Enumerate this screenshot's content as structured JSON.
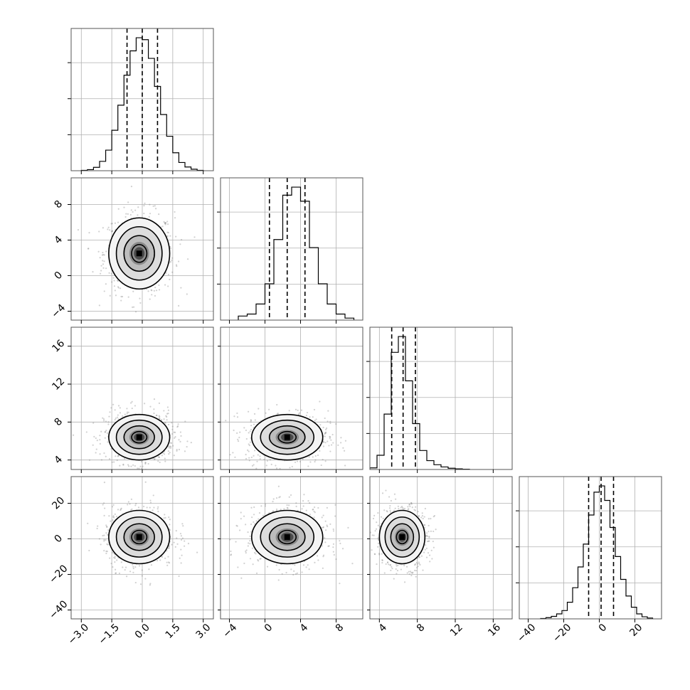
{
  "chart_data": {
    "type": "corner",
    "n_params": 4,
    "params": [
      {
        "range": [
          -3.5,
          3.5
        ],
        "ticks": [
          -3.0,
          -1.5,
          0.0,
          1.5,
          3.0
        ],
        "tick_labels": [
          "−3.0",
          "−1.5",
          "0.0",
          "1.5",
          "3.0"
        ],
        "quantiles": [
          -0.75,
          0.0,
          0.75
        ],
        "hist_edges": [
          -3.0,
          -2.7,
          -2.4,
          -2.1,
          -1.8,
          -1.5,
          -1.2,
          -0.9,
          -0.6,
          -0.3,
          0.0,
          0.3,
          0.6,
          0.9,
          1.2,
          1.5,
          1.8,
          2.1,
          2.4,
          2.7,
          3.0
        ],
        "hist_counts": [
          1,
          3,
          9,
          25,
          55,
          108,
          175,
          255,
          320,
          355,
          350,
          300,
          225,
          150,
          92,
          48,
          22,
          10,
          4,
          1
        ]
      },
      {
        "range": [
          -5,
          11
        ],
        "ticks": [
          -4,
          0,
          4,
          8
        ],
        "tick_labels": [
          "−4",
          "0",
          "4",
          "8"
        ],
        "quantiles": [
          0.5,
          2.5,
          4.5
        ],
        "hist_edges": [
          -3,
          -2,
          -1,
          0,
          1,
          2,
          3,
          4,
          5,
          6,
          7,
          8,
          9,
          10
        ],
        "hist_counts": [
          10,
          15,
          40,
          90,
          200,
          310,
          330,
          295,
          180,
          90,
          40,
          15,
          5
        ],
        "hist_edges_note": ""
      },
      {
        "range": [
          3,
          18
        ],
        "ticks": [
          4,
          8,
          12,
          16
        ],
        "tick_labels": [
          "4",
          "8",
          "12",
          "16"
        ],
        "quantiles": [
          5.3,
          6.5,
          7.8
        ],
        "hist_edges": [
          3.0,
          3.75,
          4.5,
          5.25,
          6.0,
          6.75,
          7.5,
          8.25,
          9.0,
          9.75,
          10.5,
          11.25,
          12.0,
          12.75,
          13.5
        ],
        "hist_counts": [
          5,
          45,
          175,
          370,
          420,
          280,
          145,
          60,
          28,
          15,
          8,
          4,
          2,
          1
        ]
      },
      {
        "range": [
          -45,
          35
        ],
        "ticks": [
          -40,
          -20,
          0,
          20
        ],
        "tick_labels": [
          "−40",
          "−20",
          "0",
          "20"
        ],
        "quantiles": [
          -6.0,
          1.0,
          8.0
        ],
        "hist_edges": [
          -33,
          -30,
          -27,
          -24,
          -21,
          -18,
          -15,
          -12,
          -9,
          -6,
          -3,
          0,
          3,
          6,
          9,
          12,
          15,
          18,
          21,
          24,
          27,
          30
        ],
        "hist_counts": [
          1,
          3,
          6,
          12,
          20,
          40,
          75,
          125,
          180,
          250,
          305,
          320,
          285,
          220,
          150,
          95,
          55,
          28,
          12,
          5,
          2
        ]
      }
    ],
    "pairs": [
      {
        "row": 1,
        "col": 0,
        "center": [
          -0.15,
          2.5
        ],
        "sigma": [
          0.75,
          2.0
        ]
      },
      {
        "row": 2,
        "col": 0,
        "center": [
          -0.15,
          6.4
        ],
        "sigma": [
          0.75,
          1.2
        ]
      },
      {
        "row": 2,
        "col": 1,
        "center": [
          2.5,
          6.4
        ],
        "sigma": [
          2.0,
          1.2
        ]
      },
      {
        "row": 3,
        "col": 0,
        "center": [
          -0.15,
          1.0
        ],
        "sigma": [
          0.75,
          7.5
        ]
      },
      {
        "row": 3,
        "col": 1,
        "center": [
          2.5,
          1.0
        ],
        "sigma": [
          2.0,
          7.5
        ]
      },
      {
        "row": 3,
        "col": 2,
        "center": [
          6.4,
          1.0
        ],
        "sigma": [
          1.2,
          7.5
        ]
      }
    ],
    "grid": true,
    "quantile_style": "dashed",
    "contour_levels_sigma": [
      0.5,
      1.0,
      1.5,
      2.0
    ]
  }
}
